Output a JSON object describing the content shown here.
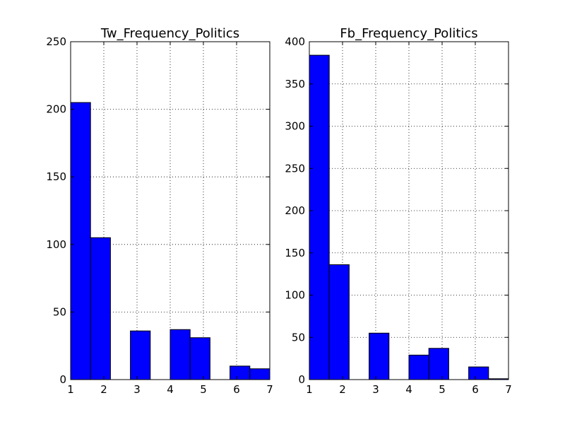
{
  "chart_data": [
    {
      "type": "bar",
      "title": "Tw_Frequency_Politics",
      "xlabel": "",
      "ylabel": "",
      "xlim": [
        1,
        7
      ],
      "ylim": [
        0,
        250
      ],
      "xticks": [
        1,
        2,
        3,
        4,
        5,
        6,
        7
      ],
      "yticks": [
        0,
        50,
        100,
        150,
        200,
        250
      ],
      "bin_edges": [
        1.0,
        1.6,
        2.2,
        2.8,
        3.4,
        4.0,
        4.6,
        5.2,
        5.8,
        6.4,
        7.0
      ],
      "values": [
        205,
        105,
        0,
        36,
        0,
        37,
        31,
        0,
        10,
        8
      ],
      "bar_color": "#0000ff",
      "grid": true
    },
    {
      "type": "bar",
      "title": "Fb_Frequency_Politics",
      "xlabel": "",
      "ylabel": "",
      "xlim": [
        1,
        7
      ],
      "ylim": [
        0,
        400
      ],
      "xticks": [
        1,
        2,
        3,
        4,
        5,
        6,
        7
      ],
      "yticks": [
        0,
        50,
        100,
        150,
        200,
        250,
        300,
        350,
        400
      ],
      "bin_edges": [
        1.0,
        1.6,
        2.2,
        2.8,
        3.4,
        4.0,
        4.6,
        5.2,
        5.8,
        6.4,
        7.0
      ],
      "values": [
        384,
        136,
        0,
        55,
        0,
        29,
        37,
        0,
        15,
        1
      ],
      "bar_color": "#0000ff",
      "grid": true
    }
  ]
}
